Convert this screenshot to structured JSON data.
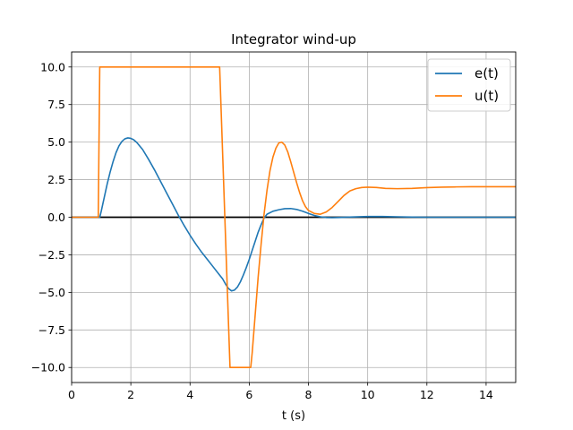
{
  "chart_data": {
    "type": "line",
    "title": "Integrator wind-up",
    "xlabel": "t (s)",
    "ylabel": "",
    "xlim": [
      0,
      15
    ],
    "ylim": [
      -11,
      11
    ],
    "grid": true,
    "legend_position": "top-right",
    "x_ticks": [
      0,
      2,
      4,
      6,
      8,
      10,
      12,
      14
    ],
    "x_tick_labels": [
      "0",
      "2",
      "4",
      "6",
      "8",
      "10",
      "12",
      "14"
    ],
    "y_ticks": [
      10,
      7.5,
      5,
      2.5,
      0,
      -2.5,
      -5,
      -7.5,
      -10
    ],
    "y_tick_labels": [
      "10.0",
      "7.5",
      "5.0",
      "2.5",
      "0.0",
      "−2.5",
      "−5.0",
      "−7.5",
      "−10.0"
    ],
    "reference_line": {
      "y": 0,
      "color": "#000000"
    },
    "series": [
      {
        "name": "e(t)",
        "color": "#1f77b4",
        "points": [
          [
            0,
            0
          ],
          [
            0.9,
            0
          ],
          [
            0.95,
            0
          ],
          [
            1.0,
            0.4
          ],
          [
            1.1,
            1.3
          ],
          [
            1.2,
            2.2
          ],
          [
            1.3,
            3.0
          ],
          [
            1.4,
            3.7
          ],
          [
            1.5,
            4.3
          ],
          [
            1.6,
            4.75
          ],
          [
            1.7,
            5.05
          ],
          [
            1.8,
            5.22
          ],
          [
            1.9,
            5.28
          ],
          [
            2.0,
            5.25
          ],
          [
            2.1,
            5.15
          ],
          [
            2.2,
            4.98
          ],
          [
            2.4,
            4.5
          ],
          [
            2.6,
            3.85
          ],
          [
            2.8,
            3.15
          ],
          [
            3.0,
            2.4
          ],
          [
            3.2,
            1.65
          ],
          [
            3.4,
            0.9
          ],
          [
            3.6,
            0.15
          ],
          [
            3.8,
            -0.55
          ],
          [
            4.0,
            -1.2
          ],
          [
            4.2,
            -1.8
          ],
          [
            4.4,
            -2.35
          ],
          [
            4.6,
            -2.85
          ],
          [
            4.8,
            -3.35
          ],
          [
            5.0,
            -3.85
          ],
          [
            5.1,
            -4.1
          ],
          [
            5.2,
            -4.45
          ],
          [
            5.3,
            -4.75
          ],
          [
            5.4,
            -4.9
          ],
          [
            5.5,
            -4.85
          ],
          [
            5.6,
            -4.65
          ],
          [
            5.7,
            -4.3
          ],
          [
            5.8,
            -3.85
          ],
          [
            5.9,
            -3.35
          ],
          [
            6.0,
            -2.8
          ],
          [
            6.1,
            -2.2
          ],
          [
            6.2,
            -1.6
          ],
          [
            6.3,
            -1.0
          ],
          [
            6.4,
            -0.5
          ],
          [
            6.5,
            -0.05
          ],
          [
            6.6,
            0.2
          ],
          [
            6.8,
            0.4
          ],
          [
            7.0,
            0.5
          ],
          [
            7.2,
            0.57
          ],
          [
            7.4,
            0.58
          ],
          [
            7.6,
            0.52
          ],
          [
            7.8,
            0.4
          ],
          [
            8.0,
            0.25
          ],
          [
            8.2,
            0.12
          ],
          [
            8.4,
            0.03
          ],
          [
            8.6,
            -0.02
          ],
          [
            8.8,
            -0.03
          ],
          [
            9.0,
            -0.02
          ],
          [
            9.5,
            0.02
          ],
          [
            10.0,
            0.05
          ],
          [
            10.5,
            0.05
          ],
          [
            11.0,
            0.03
          ],
          [
            11.5,
            0.01
          ],
          [
            12.0,
            0.0
          ],
          [
            13.0,
            0.0
          ],
          [
            14.0,
            0.0
          ],
          [
            15.0,
            0.0
          ]
        ]
      },
      {
        "name": "u(t)",
        "color": "#ff7f0e",
        "points": [
          [
            0,
            0
          ],
          [
            0.9,
            0
          ],
          [
            0.95,
            10
          ],
          [
            5.0,
            10
          ],
          [
            5.35,
            -10
          ],
          [
            6.05,
            -10
          ],
          [
            6.1,
            -9.0
          ],
          [
            6.2,
            -6.5
          ],
          [
            6.3,
            -4.0
          ],
          [
            6.4,
            -1.8
          ],
          [
            6.5,
            0.2
          ],
          [
            6.6,
            1.8
          ],
          [
            6.7,
            3.1
          ],
          [
            6.8,
            4.0
          ],
          [
            6.9,
            4.6
          ],
          [
            7.0,
            4.95
          ],
          [
            7.1,
            5.0
          ],
          [
            7.2,
            4.8
          ],
          [
            7.3,
            4.35
          ],
          [
            7.4,
            3.7
          ],
          [
            7.5,
            3.0
          ],
          [
            7.6,
            2.3
          ],
          [
            7.7,
            1.65
          ],
          [
            7.8,
            1.1
          ],
          [
            7.9,
            0.7
          ],
          [
            8.0,
            0.45
          ],
          [
            8.2,
            0.25
          ],
          [
            8.4,
            0.2
          ],
          [
            8.6,
            0.35
          ],
          [
            8.8,
            0.65
          ],
          [
            9.0,
            1.05
          ],
          [
            9.2,
            1.45
          ],
          [
            9.4,
            1.75
          ],
          [
            9.6,
            1.9
          ],
          [
            9.8,
            1.98
          ],
          [
            10.0,
            2.0
          ],
          [
            10.3,
            1.98
          ],
          [
            10.6,
            1.92
          ],
          [
            11.0,
            1.9
          ],
          [
            11.5,
            1.92
          ],
          [
            12.0,
            1.97
          ],
          [
            12.5,
            2.0
          ],
          [
            13.0,
            2.02
          ],
          [
            13.5,
            2.03
          ],
          [
            14.0,
            2.03
          ],
          [
            14.5,
            2.03
          ],
          [
            15.0,
            2.03
          ]
        ]
      }
    ]
  }
}
